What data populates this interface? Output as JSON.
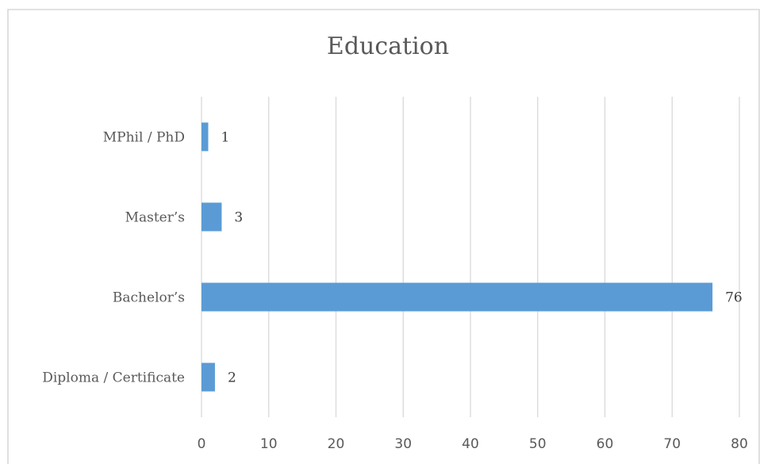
{
  "chart_data": {
    "type": "bar",
    "orientation": "horizontal",
    "title": "Education",
    "xlabel": "",
    "ylabel": "",
    "categories": [
      "Diploma / Certificate",
      "Bachelor’s",
      "Master’s",
      "MPhil / PhD"
    ],
    "values": [
      2,
      76,
      3,
      1
    ],
    "xlim": [
      0,
      80
    ],
    "x_ticks": [
      0,
      10,
      20,
      30,
      40,
      50,
      60,
      70,
      80
    ],
    "grid": true,
    "legend": "none",
    "bar_color": "#5B9BD5"
  }
}
